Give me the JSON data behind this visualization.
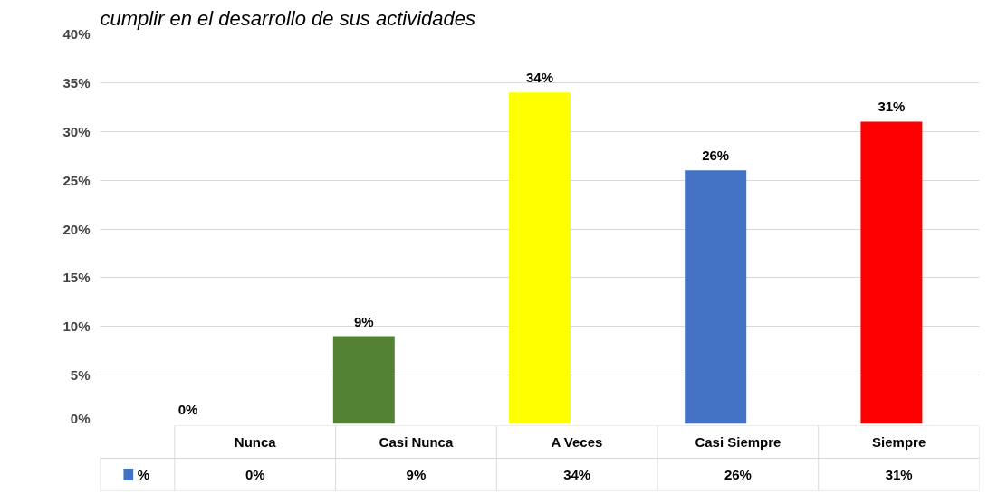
{
  "chart_data": {
    "type": "bar",
    "title": "cumplir en el desarrollo de sus actividades",
    "categories": [
      "Nunca",
      "Casi Nunca",
      "A Veces",
      "Casi Siempre",
      "Siempre"
    ],
    "series": [
      {
        "name": "%",
        "color": "#4472c4",
        "colors": [
          "#4472c4",
          "#548235",
          "#ffff00",
          "#4472c4",
          "#ff0000"
        ],
        "values": [
          0,
          9,
          34,
          26,
          31
        ],
        "value_labels": [
          "0%",
          "9%",
          "34%",
          "26%",
          "31%"
        ]
      }
    ],
    "ylim": [
      0,
      40
    ],
    "yticks": [
      {
        "value": 0,
        "label": "0%"
      },
      {
        "value": 5,
        "label": "5%"
      },
      {
        "value": 10,
        "label": "10%"
      },
      {
        "value": 15,
        "label": "15%"
      },
      {
        "value": 20,
        "label": "20%"
      },
      {
        "value": 25,
        "label": "25%"
      },
      {
        "value": 30,
        "label": "30%"
      },
      {
        "value": 35,
        "label": "35%"
      },
      {
        "value": 40,
        "label": "40%"
      }
    ],
    "grid": "y",
    "legend": "bottom"
  }
}
